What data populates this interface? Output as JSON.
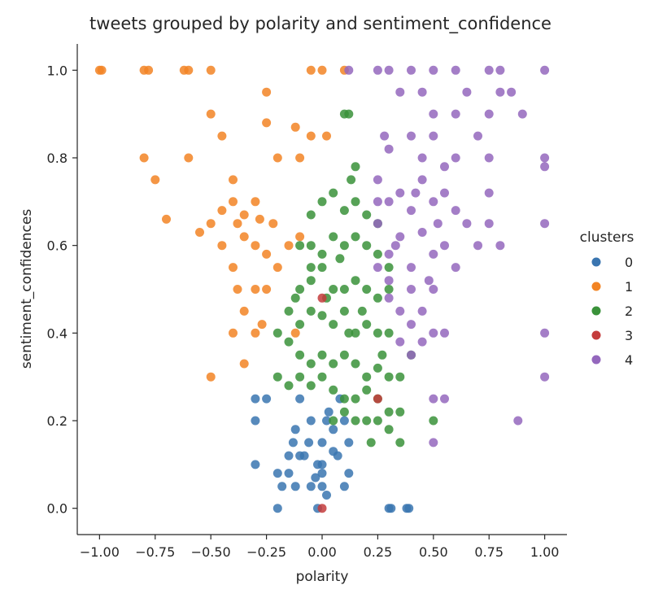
{
  "chart_data": {
    "type": "scatter",
    "title": "tweets grouped by polarity and sentiment_confidence",
    "xlabel": "polarity",
    "ylabel": "sentiment_confidences",
    "xlim": [
      -1.1,
      1.1
    ],
    "ylim": [
      -0.06,
      1.06
    ],
    "x_ticks": [
      -1.0,
      -0.75,
      -0.5,
      -0.25,
      0.0,
      0.25,
      0.5,
      0.75,
      1.0
    ],
    "x_tick_labels": [
      "−1.00",
      "−0.75",
      "−0.50",
      "−0.25",
      "0.00",
      "0.25",
      "0.50",
      "0.75",
      "1.00"
    ],
    "y_ticks": [
      0.0,
      0.2,
      0.4,
      0.6,
      0.8,
      1.0
    ],
    "y_tick_labels": [
      "0.0",
      "0.2",
      "0.4",
      "0.6",
      "0.8",
      "1.0"
    ],
    "grid": false,
    "legend": {
      "title": "clusters",
      "position": "right"
    },
    "series": [
      {
        "name": "0",
        "color": "#3a75b0",
        "points": [
          [
            -0.3,
            0.25
          ],
          [
            -0.3,
            0.2
          ],
          [
            -0.25,
            0.25
          ],
          [
            -0.3,
            0.1
          ],
          [
            -0.2,
            0.08
          ],
          [
            -0.2,
            0.0
          ],
          [
            -0.18,
            0.05
          ],
          [
            -0.15,
            0.12
          ],
          [
            -0.13,
            0.15
          ],
          [
            -0.12,
            0.18
          ],
          [
            -0.1,
            0.25
          ],
          [
            -0.1,
            0.12
          ],
          [
            -0.05,
            0.05
          ],
          [
            -0.02,
            0.1
          ],
          [
            0.0,
            0.15
          ],
          [
            0.02,
            0.2
          ],
          [
            -0.05,
            0.2
          ],
          [
            0.05,
            0.13
          ],
          [
            0.07,
            0.12
          ],
          [
            0.1,
            0.2
          ],
          [
            0.12,
            0.08
          ],
          [
            0.0,
            0.05
          ],
          [
            -0.02,
            0.0
          ],
          [
            0.0,
            0.08
          ],
          [
            0.03,
            0.22
          ],
          [
            0.08,
            0.25
          ],
          [
            0.12,
            0.15
          ],
          [
            -0.08,
            0.12
          ],
          [
            -0.15,
            0.08
          ],
          [
            -0.12,
            0.05
          ],
          [
            0.1,
            0.05
          ],
          [
            0.05,
            0.18
          ],
          [
            -0.03,
            0.07
          ],
          [
            0.3,
            0.0
          ],
          [
            0.31,
            0.0
          ],
          [
            0.38,
            0.0
          ],
          [
            0.39,
            0.0
          ],
          [
            -0.06,
            0.15
          ],
          [
            0.0,
            0.1
          ],
          [
            0.02,
            0.03
          ]
        ]
      },
      {
        "name": "1",
        "color": "#f28424",
        "points": [
          [
            -1.0,
            1.0
          ],
          [
            -0.99,
            1.0
          ],
          [
            -0.8,
            1.0
          ],
          [
            -0.78,
            1.0
          ],
          [
            -0.62,
            1.0
          ],
          [
            -0.6,
            1.0
          ],
          [
            -0.5,
            1.0
          ],
          [
            -0.05,
            1.0
          ],
          [
            0.0,
            1.0
          ],
          [
            0.1,
            1.0
          ],
          [
            -0.5,
            0.9
          ],
          [
            -0.45,
            0.85
          ],
          [
            -0.25,
            0.88
          ],
          [
            -0.12,
            0.87
          ],
          [
            -0.2,
            0.8
          ],
          [
            -0.1,
            0.8
          ],
          [
            -0.8,
            0.8
          ],
          [
            -0.75,
            0.75
          ],
          [
            -0.6,
            0.8
          ],
          [
            -0.4,
            0.75
          ],
          [
            -0.4,
            0.7
          ],
          [
            -0.3,
            0.7
          ],
          [
            -0.35,
            0.67
          ],
          [
            -0.28,
            0.66
          ],
          [
            -0.7,
            0.66
          ],
          [
            -0.55,
            0.63
          ],
          [
            -0.5,
            0.65
          ],
          [
            -0.45,
            0.6
          ],
          [
            -0.38,
            0.65
          ],
          [
            -0.35,
            0.62
          ],
          [
            -0.3,
            0.6
          ],
          [
            -0.25,
            0.58
          ],
          [
            -0.2,
            0.55
          ],
          [
            -0.15,
            0.6
          ],
          [
            -0.1,
            0.62
          ],
          [
            -0.4,
            0.55
          ],
          [
            -0.38,
            0.5
          ],
          [
            -0.3,
            0.5
          ],
          [
            -0.25,
            0.5
          ],
          [
            -0.35,
            0.45
          ],
          [
            -0.3,
            0.4
          ],
          [
            -0.27,
            0.42
          ],
          [
            -0.4,
            0.4
          ],
          [
            -0.35,
            0.33
          ],
          [
            -0.5,
            0.3
          ],
          [
            -0.05,
            0.85
          ],
          [
            0.02,
            0.85
          ],
          [
            -0.25,
            0.95
          ],
          [
            -0.22,
            0.65
          ],
          [
            -0.12,
            0.4
          ],
          [
            -0.45,
            0.68
          ]
        ]
      },
      {
        "name": "2",
        "color": "#3a923a",
        "points": [
          [
            0.1,
            0.9
          ],
          [
            0.12,
            0.9
          ],
          [
            0.15,
            0.78
          ],
          [
            0.13,
            0.75
          ],
          [
            0.0,
            0.7
          ],
          [
            -0.05,
            0.67
          ],
          [
            0.05,
            0.72
          ],
          [
            0.1,
            0.68
          ],
          [
            0.15,
            0.7
          ],
          [
            0.2,
            0.67
          ],
          [
            0.25,
            0.65
          ],
          [
            -0.1,
            0.6
          ],
          [
            -0.05,
            0.6
          ],
          [
            0.0,
            0.58
          ],
          [
            0.05,
            0.62
          ],
          [
            0.1,
            0.6
          ],
          [
            0.15,
            0.62
          ],
          [
            0.2,
            0.6
          ],
          [
            0.25,
            0.58
          ],
          [
            0.3,
            0.55
          ],
          [
            -0.1,
            0.5
          ],
          [
            -0.05,
            0.52
          ],
          [
            0.0,
            0.55
          ],
          [
            0.05,
            0.5
          ],
          [
            0.1,
            0.5
          ],
          [
            0.15,
            0.52
          ],
          [
            0.2,
            0.5
          ],
          [
            0.25,
            0.48
          ],
          [
            0.3,
            0.5
          ],
          [
            -0.15,
            0.45
          ],
          [
            -0.1,
            0.42
          ],
          [
            -0.05,
            0.45
          ],
          [
            0.0,
            0.44
          ],
          [
            0.05,
            0.42
          ],
          [
            0.1,
            0.45
          ],
          [
            0.15,
            0.4
          ],
          [
            0.2,
            0.42
          ],
          [
            0.25,
            0.4
          ],
          [
            0.3,
            0.4
          ],
          [
            -0.2,
            0.4
          ],
          [
            -0.15,
            0.38
          ],
          [
            -0.1,
            0.35
          ],
          [
            -0.05,
            0.33
          ],
          [
            0.0,
            0.35
          ],
          [
            0.05,
            0.33
          ],
          [
            0.1,
            0.35
          ],
          [
            0.15,
            0.33
          ],
          [
            0.2,
            0.3
          ],
          [
            0.25,
            0.32
          ],
          [
            0.3,
            0.3
          ],
          [
            -0.2,
            0.3
          ],
          [
            -0.15,
            0.28
          ],
          [
            -0.1,
            0.3
          ],
          [
            -0.05,
            0.28
          ],
          [
            0.0,
            0.3
          ],
          [
            0.05,
            0.27
          ],
          [
            0.1,
            0.25
          ],
          [
            0.15,
            0.25
          ],
          [
            0.2,
            0.27
          ],
          [
            0.25,
            0.25
          ],
          [
            0.3,
            0.22
          ],
          [
            0.35,
            0.3
          ],
          [
            0.4,
            0.35
          ],
          [
            0.05,
            0.2
          ],
          [
            0.1,
            0.22
          ],
          [
            0.15,
            0.2
          ],
          [
            0.2,
            0.2
          ],
          [
            0.25,
            0.2
          ],
          [
            0.3,
            0.18
          ],
          [
            0.35,
            0.22
          ],
          [
            0.5,
            0.2
          ],
          [
            0.22,
            0.15
          ],
          [
            0.35,
            0.15
          ],
          [
            -0.05,
            0.55
          ],
          [
            0.02,
            0.48
          ],
          [
            0.08,
            0.57
          ],
          [
            0.12,
            0.4
          ],
          [
            -0.12,
            0.48
          ],
          [
            0.18,
            0.45
          ],
          [
            0.27,
            0.35
          ]
        ]
      },
      {
        "name": "3",
        "color": "#c43c3c",
        "points": [
          [
            0.0,
            0.48
          ],
          [
            0.25,
            0.25
          ],
          [
            0.0,
            0.0
          ]
        ]
      },
      {
        "name": "4",
        "color": "#9467bd",
        "points": [
          [
            0.12,
            1.0
          ],
          [
            0.25,
            1.0
          ],
          [
            0.3,
            1.0
          ],
          [
            0.4,
            1.0
          ],
          [
            0.5,
            1.0
          ],
          [
            0.6,
            1.0
          ],
          [
            0.75,
            1.0
          ],
          [
            0.8,
            1.0
          ],
          [
            1.0,
            1.0
          ],
          [
            0.35,
            0.95
          ],
          [
            0.45,
            0.95
          ],
          [
            0.65,
            0.95
          ],
          [
            0.8,
            0.95
          ],
          [
            0.85,
            0.95
          ],
          [
            0.5,
            0.9
          ],
          [
            0.6,
            0.9
          ],
          [
            0.75,
            0.9
          ],
          [
            0.9,
            0.9
          ],
          [
            0.4,
            0.85
          ],
          [
            0.5,
            0.85
          ],
          [
            0.7,
            0.85
          ],
          [
            0.3,
            0.82
          ],
          [
            0.45,
            0.8
          ],
          [
            0.55,
            0.78
          ],
          [
            0.6,
            0.8
          ],
          [
            0.75,
            0.8
          ],
          [
            1.0,
            0.8
          ],
          [
            0.25,
            0.75
          ],
          [
            0.35,
            0.72
          ],
          [
            0.45,
            0.75
          ],
          [
            0.55,
            0.72
          ],
          [
            0.75,
            0.72
          ],
          [
            1.0,
            0.78
          ],
          [
            0.25,
            0.7
          ],
          [
            0.3,
            0.7
          ],
          [
            0.4,
            0.68
          ],
          [
            0.5,
            0.7
          ],
          [
            0.6,
            0.68
          ],
          [
            0.65,
            0.65
          ],
          [
            0.25,
            0.65
          ],
          [
            0.35,
            0.62
          ],
          [
            0.45,
            0.63
          ],
          [
            0.55,
            0.6
          ],
          [
            0.7,
            0.6
          ],
          [
            0.8,
            0.6
          ],
          [
            1.0,
            0.65
          ],
          [
            0.3,
            0.58
          ],
          [
            0.4,
            0.55
          ],
          [
            0.5,
            0.58
          ],
          [
            0.6,
            0.55
          ],
          [
            0.25,
            0.55
          ],
          [
            0.3,
            0.52
          ],
          [
            0.4,
            0.5
          ],
          [
            0.5,
            0.5
          ],
          [
            0.3,
            0.48
          ],
          [
            0.35,
            0.45
          ],
          [
            0.4,
            0.42
          ],
          [
            0.45,
            0.45
          ],
          [
            0.5,
            0.4
          ],
          [
            0.55,
            0.4
          ],
          [
            0.35,
            0.38
          ],
          [
            0.45,
            0.38
          ],
          [
            0.4,
            0.35
          ],
          [
            0.5,
            0.25
          ],
          [
            0.55,
            0.25
          ],
          [
            0.5,
            0.15
          ],
          [
            0.88,
            0.2
          ],
          [
            1.0,
            0.4
          ],
          [
            1.0,
            0.3
          ],
          [
            0.75,
            0.65
          ],
          [
            0.28,
            0.85
          ],
          [
            0.42,
            0.72
          ],
          [
            0.52,
            0.65
          ],
          [
            0.33,
            0.6
          ],
          [
            0.48,
            0.52
          ]
        ]
      }
    ]
  }
}
